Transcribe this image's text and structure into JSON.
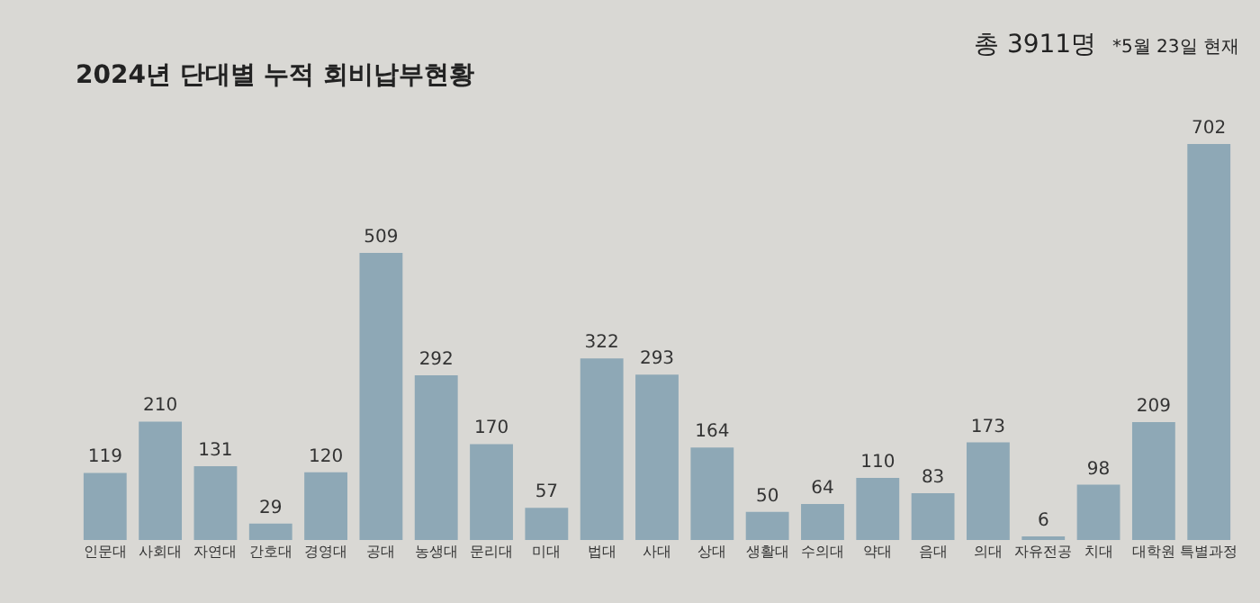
{
  "chart_data": {
    "type": "bar",
    "title": "2024년 단대별 누적 회비납부현황",
    "subtitle": "총 3911명",
    "annotations": [
      "*5월 23일 현재"
    ],
    "categories": [
      "인문대",
      "사회대",
      "자연대",
      "간호대",
      "경영대",
      "공대",
      "농생대",
      "문리대",
      "미대",
      "법대",
      "사대",
      "상대",
      "생활대",
      "수의대",
      "약대",
      "음대",
      "의대",
      "자유전공",
      "치대",
      "대학원",
      "특별과정"
    ],
    "values": [
      119,
      210,
      131,
      29,
      120,
      509,
      292,
      170,
      57,
      322,
      293,
      164,
      50,
      64,
      110,
      83,
      173,
      6,
      98,
      209,
      702
    ],
    "color": "#8ea8b6",
    "data_labels": true
  }
}
